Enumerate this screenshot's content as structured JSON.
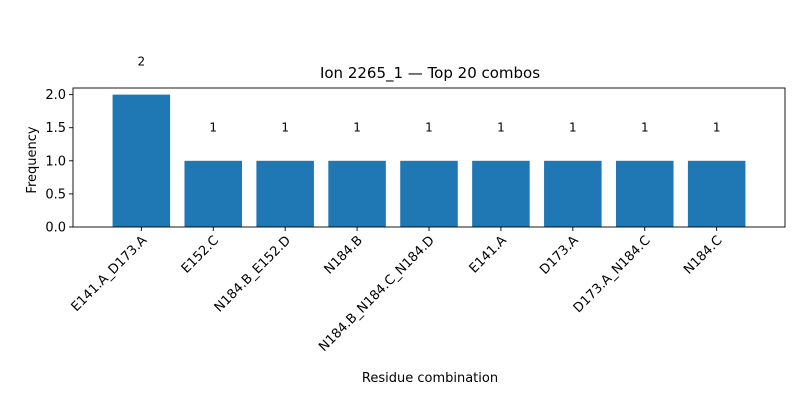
{
  "chart_data": {
    "type": "bar",
    "title": "Ion 2265_1 — Top 20 combos",
    "xlabel": "Residue combination",
    "ylabel": "Frequency",
    "categories": [
      "E141.A_D173.A",
      "E152.C",
      "N184.B_E152.D",
      "N184.B",
      "N184.B_N184.C_N184.D",
      "E141.A",
      "D173.A",
      "D173.A_N184.C",
      "N184.C"
    ],
    "values": [
      2,
      1,
      1,
      1,
      1,
      1,
      1,
      1,
      1
    ],
    "data_labels": [
      "2",
      "1",
      "1",
      "1",
      "1",
      "1",
      "1",
      "1",
      "1"
    ],
    "ylim": [
      0,
      2.1
    ],
    "yticks": [
      0.0,
      0.5,
      1.0,
      1.5,
      2.0
    ],
    "ytick_labels": [
      "0.0",
      "0.5",
      "1.0",
      "1.5",
      "2.0"
    ],
    "bar_color": "#1f77b4",
    "grid": false,
    "legend": "none"
  }
}
